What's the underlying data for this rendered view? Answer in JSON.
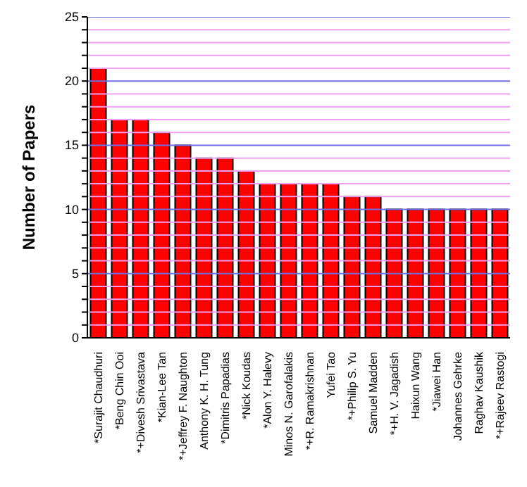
{
  "chart_data": {
    "type": "bar",
    "ylabel": "Number of Papers",
    "categories": [
      "*Surajit Chaudhuri",
      "*Beng Chin Ooi",
      "*+Divesh Srivastava",
      "*Kian-Lee Tan",
      "*+Jeffrey F. Naughton",
      "Anthony K. H. Tung",
      "*Dimitris Papadias",
      "*Nick Koudas",
      "*Alon Y. Halevy",
      "Minos N. Garofalakis",
      "*+R. Ramakrishnan",
      "Yufei Tao",
      "*+Philip S. Yu",
      "Samuel Madden",
      "*+H. V. Jagadish",
      "Haixun Wang",
      "*Jiawei Han",
      "Johannes Gehrke",
      "Raghav Kaushik",
      "*+Rajeev Rastogi"
    ],
    "values": [
      21,
      17,
      17,
      16,
      15,
      14,
      14,
      13,
      12,
      12,
      12,
      12,
      11,
      11,
      10,
      10,
      10,
      10,
      10,
      10
    ],
    "color": "#ff0000",
    "ylim": [
      0,
      25
    ],
    "yticks": [
      0,
      {
        "value": 1,
        "label": null
      },
      {
        "value": 2,
        "label": null
      },
      {
        "value": 3,
        "label": null
      },
      {
        "value": 4,
        "label": null
      },
      5,
      {
        "value": 6,
        "label": null
      },
      {
        "value": 7,
        "label": null
      },
      {
        "value": 8,
        "label": null
      },
      {
        "value": 9,
        "label": null
      },
      10,
      {
        "value": 11,
        "label": null
      },
      {
        "value": 12,
        "label": null
      },
      {
        "value": 13,
        "label": null
      },
      {
        "value": 14,
        "label": null
      },
      15,
      {
        "value": 16,
        "label": null
      },
      {
        "value": 17,
        "label": null
      },
      {
        "value": 18,
        "label": null
      },
      {
        "value": 19,
        "label": null
      },
      20,
      {
        "value": 21,
        "label": null
      },
      {
        "value": 22,
        "label": null
      },
      {
        "value": 23,
        "label": null
      },
      {
        "value": 24,
        "label": null
      },
      25
    ],
    "grid": "y"
  }
}
